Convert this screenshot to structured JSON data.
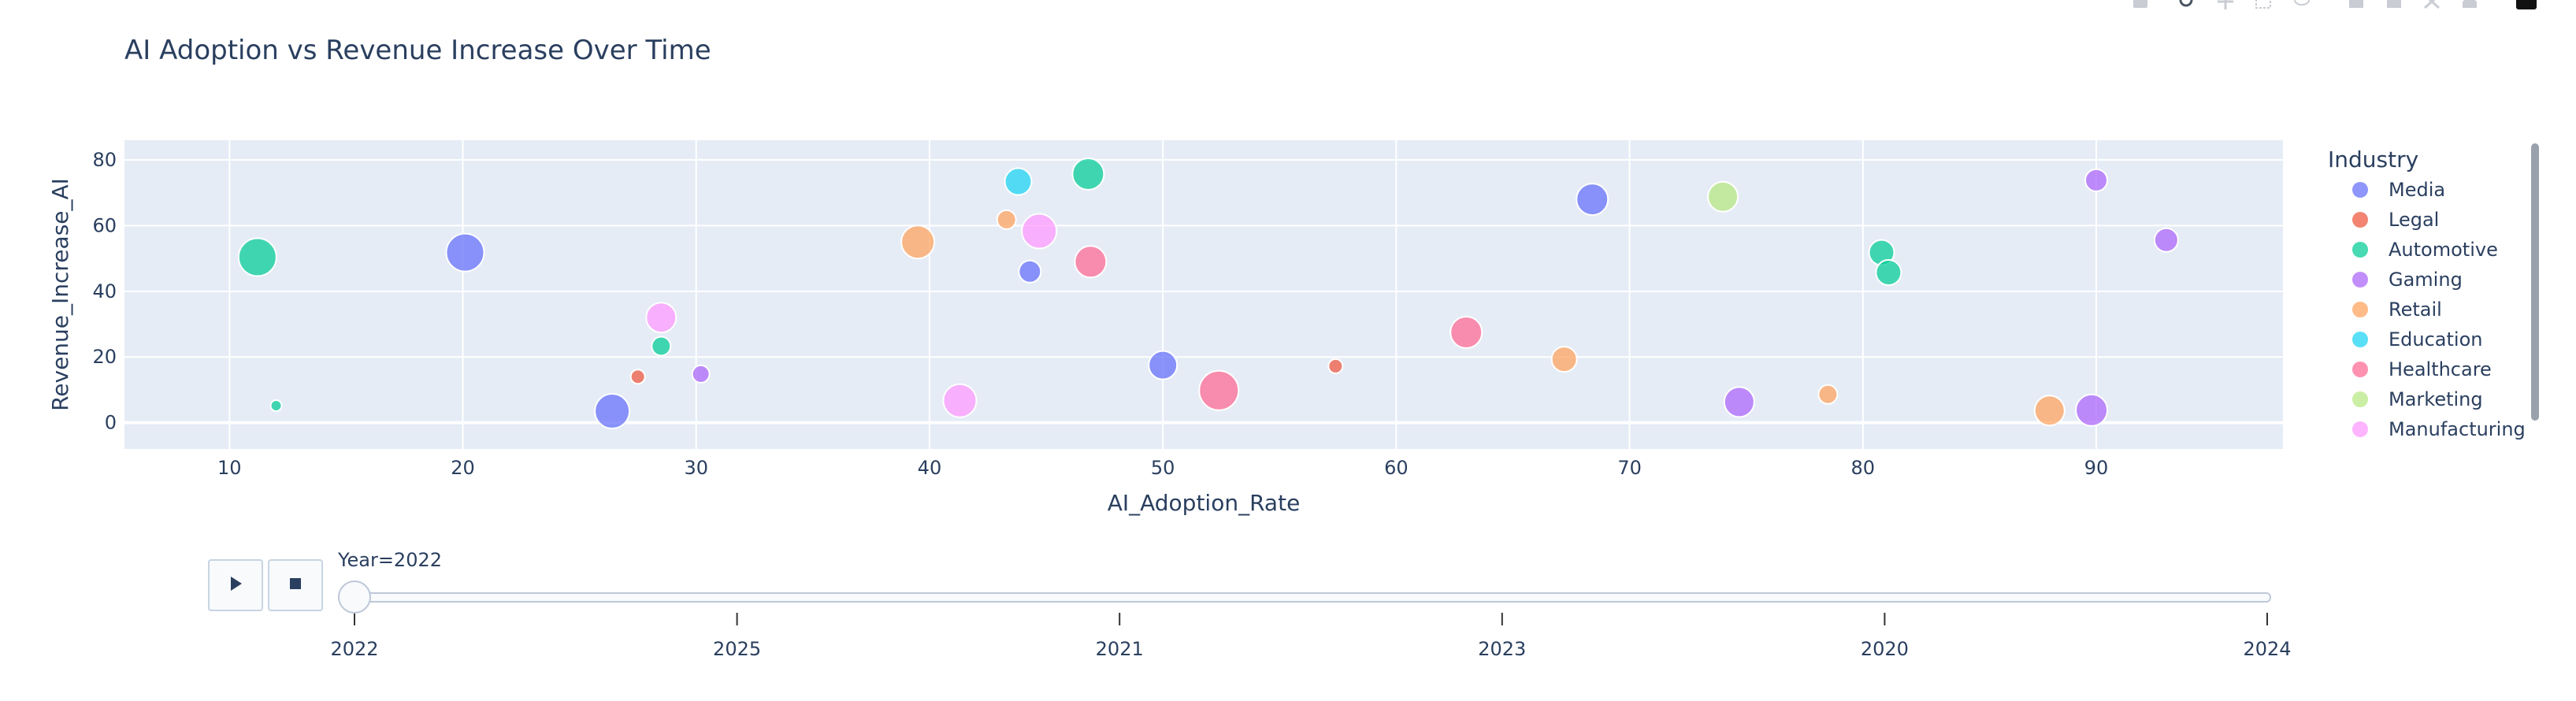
{
  "chart_data": {
    "type": "scatter",
    "title": "AI Adoption vs Revenue Increase Over Time",
    "xlabel": "AI_Adoption_Rate",
    "ylabel": "Revenue_Increase_AI",
    "xlim": [
      5.5,
      98
    ],
    "ylim": [
      -8,
      86
    ],
    "x_ticks": [
      10,
      20,
      30,
      40,
      50,
      60,
      70,
      80,
      90
    ],
    "y_ticks": [
      0,
      20,
      40,
      60,
      80
    ],
    "grid": true,
    "legend_title": "Industry",
    "legend_position": "right",
    "series": [
      {
        "name": "Media",
        "color": "#636efa",
        "points": [
          {
            "x": 20.1,
            "y": 51.8,
            "size": 24
          },
          {
            "x": 26.4,
            "y": 3.5,
            "size": 22
          },
          {
            "x": 44.3,
            "y": 46.0,
            "size": 14
          },
          {
            "x": 50.0,
            "y": 17.5,
            "size": 18
          },
          {
            "x": 68.4,
            "y": 68.0,
            "size": 20
          }
        ]
      },
      {
        "name": "Legal",
        "color": "#ef553b",
        "points": [
          {
            "x": 27.5,
            "y": 14.0,
            "size": 9
          },
          {
            "x": 57.4,
            "y": 17.2,
            "size": 9
          }
        ]
      },
      {
        "name": "Automotive",
        "color": "#00cc96",
        "points": [
          {
            "x": 11.2,
            "y": 50.4,
            "size": 24
          },
          {
            "x": 12.0,
            "y": 5.2,
            "size": 7
          },
          {
            "x": 28.5,
            "y": 23.3,
            "size": 12
          },
          {
            "x": 46.8,
            "y": 75.7,
            "size": 20
          },
          {
            "x": 80.8,
            "y": 51.8,
            "size": 16
          },
          {
            "x": 81.1,
            "y": 45.7,
            "size": 16
          }
        ]
      },
      {
        "name": "Gaming",
        "color": "#ab63fa",
        "points": [
          {
            "x": 30.2,
            "y": 14.8,
            "size": 11
          },
          {
            "x": 74.7,
            "y": 6.3,
            "size": 19
          },
          {
            "x": 89.8,
            "y": 3.8,
            "size": 20
          },
          {
            "x": 90.0,
            "y": 73.8,
            "size": 14
          },
          {
            "x": 93.0,
            "y": 55.6,
            "size": 15
          }
        ]
      },
      {
        "name": "Retail",
        "color": "#ffa15a",
        "points": [
          {
            "x": 43.3,
            "y": 61.8,
            "size": 12
          },
          {
            "x": 67.2,
            "y": 19.3,
            "size": 16
          },
          {
            "x": 78.5,
            "y": 8.6,
            "size": 12
          },
          {
            "x": 39.5,
            "y": 55.0,
            "size": 21
          },
          {
            "x": 88.0,
            "y": 3.7,
            "size": 19
          }
        ]
      },
      {
        "name": "Education",
        "color": "#19d3f3",
        "points": [
          {
            "x": 43.8,
            "y": 73.4,
            "size": 17
          }
        ]
      },
      {
        "name": "Healthcare",
        "color": "#ff6692",
        "points": [
          {
            "x": 46.9,
            "y": 49.0,
            "size": 20
          },
          {
            "x": 52.4,
            "y": 9.8,
            "size": 25
          },
          {
            "x": 63.0,
            "y": 27.5,
            "size": 20
          }
        ]
      },
      {
        "name": "Marketing",
        "color": "#b6e880",
        "points": [
          {
            "x": 74.0,
            "y": 68.8,
            "size": 19
          }
        ]
      },
      {
        "name": "Manufacturing",
        "color": "#ff97ff",
        "points": [
          {
            "x": 28.5,
            "y": 32.0,
            "size": 19
          },
          {
            "x": 41.3,
            "y": 6.7,
            "size": 21
          },
          {
            "x": 44.7,
            "y": 58.3,
            "size": 22
          }
        ]
      }
    ]
  },
  "slider": {
    "current_label": "Year=2022",
    "steps": [
      "2022",
      "2025",
      "2021",
      "2023",
      "2020",
      "2024"
    ],
    "active_index": 0
  },
  "controls": {
    "play_icon": "play-icon",
    "stop_icon": "stop-icon"
  },
  "modebar": {
    "icons": [
      "camera-icon",
      "zoom-icon",
      "pan-icon",
      "box-select-icon",
      "lasso-select-icon",
      "zoom-in-icon",
      "zoom-out-icon",
      "autoscale-icon",
      "home-icon",
      "plotly-logo-icon"
    ]
  }
}
